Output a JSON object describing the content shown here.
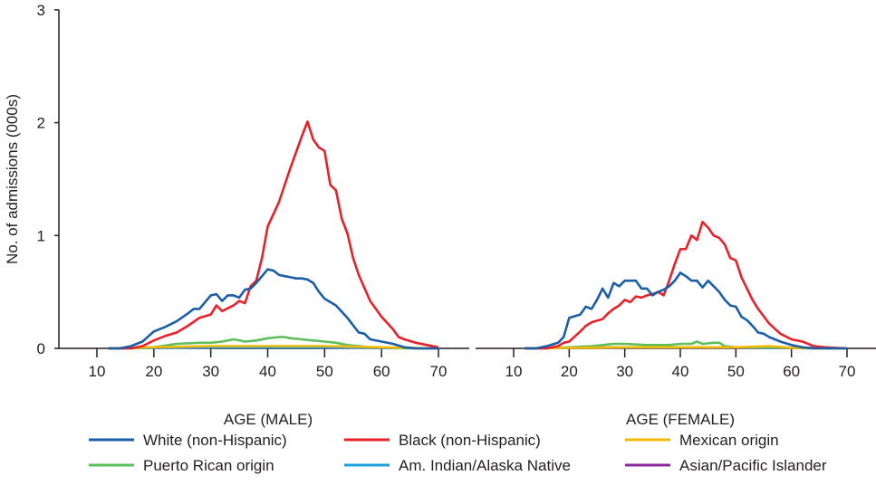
{
  "chart_data": [
    {
      "type": "line",
      "xlabel": "AGE (MALE)",
      "ylabel": "No. of admissions (000s)",
      "xlim": [
        10,
        70
      ],
      "ylim": [
        0,
        3
      ],
      "xticks": [
        10,
        20,
        30,
        40,
        50,
        60,
        70
      ],
      "yticks": [
        0,
        1,
        2,
        3
      ],
      "grid": false,
      "series": [
        {
          "name": "White (non-Hispanic)",
          "color": "#1a5ea8",
          "x": [
            12,
            14,
            16,
            18,
            20,
            22,
            24,
            26,
            27,
            28,
            29,
            30,
            31,
            32,
            33,
            34,
            35,
            36,
            37,
            38,
            40,
            41,
            42,
            43,
            44,
            45,
            46,
            47,
            48,
            49,
            50,
            52,
            54,
            56,
            57,
            58,
            60,
            62,
            64,
            66,
            70
          ],
          "y": [
            0,
            0,
            0.02,
            0.06,
            0.15,
            0.19,
            0.24,
            0.31,
            0.35,
            0.35,
            0.41,
            0.47,
            0.48,
            0.42,
            0.47,
            0.47,
            0.45,
            0.52,
            0.53,
            0.58,
            0.7,
            0.69,
            0.65,
            0.64,
            0.63,
            0.62,
            0.62,
            0.61,
            0.58,
            0.5,
            0.44,
            0.38,
            0.27,
            0.14,
            0.13,
            0.08,
            0.06,
            0.04,
            0.01,
            0,
            0
          ]
        },
        {
          "name": "Black (non-Hispanic)",
          "color": "#e8202a",
          "x": [
            12,
            14,
            16,
            18,
            20,
            22,
            24,
            26,
            28,
            30,
            31,
            32,
            34,
            35,
            36,
            37,
            38,
            39,
            40,
            42,
            44,
            46,
            47,
            48,
            49,
            50,
            51,
            52,
            53,
            54,
            55,
            56,
            58,
            60,
            62,
            63,
            64,
            66,
            68,
            70
          ],
          "y": [
            0,
            0,
            0,
            0.02,
            0.07,
            0.11,
            0.14,
            0.2,
            0.27,
            0.3,
            0.38,
            0.33,
            0.38,
            0.42,
            0.4,
            0.55,
            0.6,
            0.8,
            1.08,
            1.3,
            1.6,
            1.88,
            2.01,
            1.85,
            1.78,
            1.75,
            1.45,
            1.4,
            1.15,
            1.02,
            0.8,
            0.65,
            0.42,
            0.28,
            0.17,
            0.1,
            0.08,
            0.05,
            0.03,
            0.01
          ]
        },
        {
          "name": "Mexican origin",
          "color": "#f5b800",
          "x": [
            12,
            20,
            30,
            40,
            50,
            60,
            70
          ],
          "y": [
            0,
            0.01,
            0.02,
            0.02,
            0.02,
            0.01,
            0
          ]
        },
        {
          "name": "Puerto Rican origin",
          "color": "#5cbf5c",
          "x": [
            12,
            16,
            20,
            24,
            28,
            30,
            32,
            34,
            36,
            38,
            40,
            42,
            43,
            44,
            46,
            48,
            50,
            52,
            54,
            56,
            58,
            60,
            64,
            70
          ],
          "y": [
            0,
            0,
            0.01,
            0.04,
            0.05,
            0.05,
            0.06,
            0.08,
            0.06,
            0.07,
            0.09,
            0.1,
            0.1,
            0.09,
            0.08,
            0.07,
            0.06,
            0.05,
            0.03,
            0.02,
            0.01,
            0.01,
            0,
            0
          ]
        },
        {
          "name": "Am. Indian/Alaska Native",
          "color": "#1ea0e0",
          "x": [
            12,
            20,
            30,
            40,
            50,
            60,
            70
          ],
          "y": [
            0,
            0.005,
            0.01,
            0.01,
            0.01,
            0.005,
            0
          ]
        },
        {
          "name": "Asian/Pacific Islander",
          "color": "#8a2a9e",
          "x": [
            12,
            20,
            30,
            40,
            50,
            60,
            70
          ],
          "y": [
            0,
            0.005,
            0.01,
            0.015,
            0.01,
            0.005,
            0
          ]
        }
      ]
    },
    {
      "type": "line",
      "xlabel": "AGE (FEMALE)",
      "ylabel": "",
      "xlim": [
        10,
        70
      ],
      "ylim": [
        0,
        3
      ],
      "xticks": [
        10,
        20,
        30,
        40,
        50,
        60,
        70
      ],
      "grid": false,
      "series": [
        {
          "name": "White (non-Hispanic)",
          "color": "#1a5ea8",
          "x": [
            12,
            14,
            16,
            18,
            19,
            20,
            22,
            23,
            24,
            25,
            26,
            27,
            28,
            29,
            30,
            31,
            32,
            33,
            34,
            35,
            36,
            37,
            38,
            39,
            40,
            41,
            42,
            43,
            44,
            45,
            46,
            47,
            48,
            49,
            50,
            51,
            52,
            53,
            54,
            55,
            56,
            58,
            60,
            62,
            64,
            70
          ],
          "y": [
            0,
            0,
            0.02,
            0.05,
            0.1,
            0.27,
            0.3,
            0.37,
            0.35,
            0.43,
            0.53,
            0.45,
            0.58,
            0.55,
            0.6,
            0.6,
            0.6,
            0.53,
            0.53,
            0.47,
            0.5,
            0.52,
            0.55,
            0.6,
            0.67,
            0.64,
            0.6,
            0.6,
            0.54,
            0.6,
            0.55,
            0.5,
            0.43,
            0.38,
            0.37,
            0.28,
            0.25,
            0.2,
            0.14,
            0.13,
            0.1,
            0.06,
            0.03,
            0.01,
            0,
            0
          ]
        },
        {
          "name": "Black (non-Hispanic)",
          "color": "#e8202a",
          "x": [
            12,
            16,
            18,
            19,
            20,
            22,
            23,
            24,
            26,
            27,
            28,
            29,
            30,
            31,
            32,
            33,
            34,
            35,
            36,
            37,
            38,
            39,
            40,
            41,
            42,
            43,
            44,
            45,
            46,
            47,
            48,
            49,
            50,
            51,
            52,
            53,
            54,
            56,
            58,
            60,
            62,
            64,
            66,
            70
          ],
          "y": [
            0,
            0,
            0.02,
            0.05,
            0.06,
            0.15,
            0.2,
            0.23,
            0.26,
            0.31,
            0.35,
            0.38,
            0.43,
            0.41,
            0.46,
            0.45,
            0.47,
            0.48,
            0.5,
            0.47,
            0.6,
            0.75,
            0.88,
            0.88,
            1.0,
            0.96,
            1.12,
            1.07,
            1.0,
            0.98,
            0.92,
            0.8,
            0.78,
            0.63,
            0.53,
            0.43,
            0.35,
            0.22,
            0.13,
            0.08,
            0.06,
            0.02,
            0.01,
            0
          ]
        },
        {
          "name": "Mexican origin",
          "color": "#f5b800",
          "x": [
            12,
            20,
            30,
            40,
            50,
            56,
            60,
            70
          ],
          "y": [
            0,
            0.005,
            0.01,
            0.01,
            0.01,
            0.02,
            0.005,
            0
          ]
        },
        {
          "name": "Puerto Rican origin",
          "color": "#5cbf5c",
          "x": [
            12,
            16,
            20,
            24,
            28,
            30,
            34,
            38,
            40,
            42,
            43,
            44,
            46,
            47,
            48,
            50,
            54,
            58,
            62,
            70
          ],
          "y": [
            0,
            0,
            0.01,
            0.02,
            0.04,
            0.04,
            0.03,
            0.03,
            0.04,
            0.04,
            0.06,
            0.04,
            0.05,
            0.05,
            0.02,
            0.01,
            0.01,
            0.01,
            0,
            0
          ]
        },
        {
          "name": "Am. Indian/Alaska Native",
          "color": "#1ea0e0",
          "x": [
            12,
            20,
            30,
            40,
            50,
            60,
            70
          ],
          "y": [
            0,
            0.005,
            0.01,
            0.01,
            0.01,
            0.005,
            0
          ]
        },
        {
          "name": "Asian/Pacific Islander",
          "color": "#8a2a9e",
          "x": [
            12,
            20,
            30,
            40,
            50,
            60,
            70
          ],
          "y": [
            0,
            0.005,
            0.01,
            0.01,
            0.01,
            0.005,
            0
          ]
        }
      ]
    }
  ],
  "legend": {
    "placement": "bottom",
    "items": [
      {
        "label": "White (non-Hispanic)",
        "color": "#1a5ea8"
      },
      {
        "label": "Black (non-Hispanic)",
        "color": "#e8202a"
      },
      {
        "label": "Mexican origin",
        "color": "#f5b800"
      },
      {
        "label": "Puerto Rican origin",
        "color": "#5cbf5c"
      },
      {
        "label": "Am. Indian/Alaska Native",
        "color": "#1ea0e0"
      },
      {
        "label": "Asian/Pacific Islander",
        "color": "#8a2a9e"
      }
    ]
  }
}
